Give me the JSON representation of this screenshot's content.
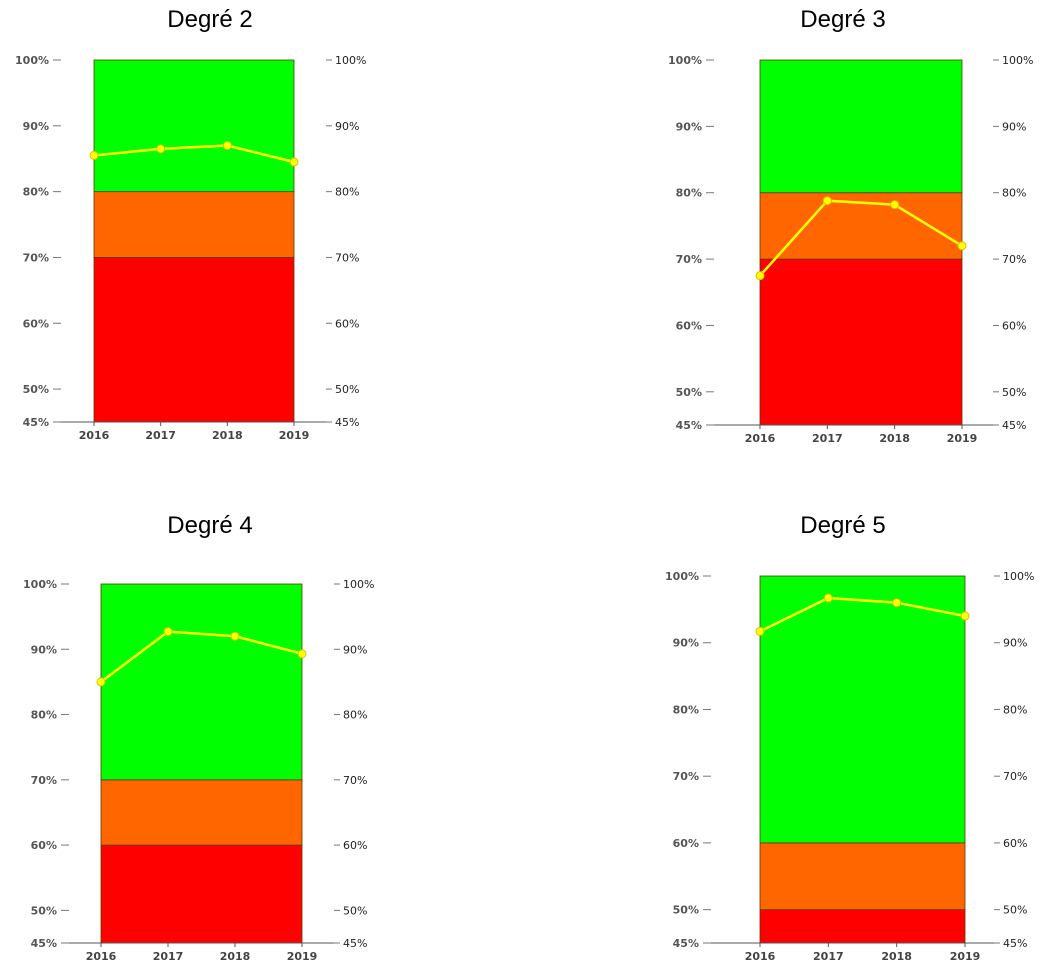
{
  "chart_data": [
    {
      "type": "line",
      "title": "Degré 2",
      "categories": [
        "2016",
        "2017",
        "2018",
        "2019"
      ],
      "series": [
        {
          "values": [
            85.5,
            86.5,
            87,
            84.5
          ],
          "color": "#ffff00"
        }
      ],
      "bands": [
        {
          "from": 45,
          "to": 70,
          "color": "#ff0000"
        },
        {
          "from": 70,
          "to": 80,
          "color": "#ff6600"
        },
        {
          "from": 80,
          "to": 100,
          "color": "#00ff00"
        }
      ],
      "ylim": [
        45,
        100
      ],
      "yticks": [
        45,
        50,
        60,
        70,
        80,
        90,
        100
      ],
      "ytick_labels": [
        "45%",
        "50%",
        "60%",
        "70%",
        "80%",
        "90%",
        "100%"
      ]
    },
    {
      "type": "line",
      "title": "Degré 3",
      "categories": [
        "2016",
        "2017",
        "2018",
        "2019"
      ],
      "series": [
        {
          "values": [
            67.5,
            78.8,
            78.2,
            72
          ],
          "color": "#ffff00"
        }
      ],
      "bands": [
        {
          "from": 45,
          "to": 70,
          "color": "#ff0000"
        },
        {
          "from": 70,
          "to": 80,
          "color": "#ff6600"
        },
        {
          "from": 80,
          "to": 100,
          "color": "#00ff00"
        }
      ],
      "ylim": [
        45,
        100
      ],
      "yticks": [
        45,
        50,
        60,
        70,
        80,
        90,
        100
      ],
      "ytick_labels": [
        "45%",
        "50%",
        "60%",
        "70%",
        "80%",
        "90%",
        "100%"
      ]
    },
    {
      "type": "line",
      "title": "Degré 4",
      "categories": [
        "2016",
        "2017",
        "2018",
        "2019"
      ],
      "series": [
        {
          "values": [
            85,
            92.7,
            92,
            89.3
          ],
          "color": "#ffff00"
        }
      ],
      "bands": [
        {
          "from": 45,
          "to": 60,
          "color": "#ff0000"
        },
        {
          "from": 60,
          "to": 70,
          "color": "#ff6600"
        },
        {
          "from": 70,
          "to": 100,
          "color": "#00ff00"
        }
      ],
      "ylim": [
        45,
        100
      ],
      "yticks": [
        45,
        50,
        60,
        70,
        80,
        90,
        100
      ],
      "ytick_labels": [
        "45%",
        "50%",
        "60%",
        "70%",
        "80%",
        "90%",
        "100%"
      ]
    },
    {
      "type": "line",
      "title": "Degré 5",
      "categories": [
        "2016",
        "2017",
        "2018",
        "2019"
      ],
      "series": [
        {
          "values": [
            91.7,
            96.7,
            96,
            94
          ],
          "color": "#ffff00"
        }
      ],
      "bands": [
        {
          "from": 45,
          "to": 50,
          "color": "#ff0000"
        },
        {
          "from": 50,
          "to": 60,
          "color": "#ff6600"
        },
        {
          "from": 60,
          "to": 100,
          "color": "#00ff00"
        }
      ],
      "ylim": [
        45,
        100
      ],
      "yticks": [
        45,
        50,
        60,
        70,
        80,
        90,
        100
      ],
      "ytick_labels": [
        "45%",
        "50%",
        "60%",
        "70%",
        "80%",
        "90%",
        "100%"
      ]
    }
  ]
}
